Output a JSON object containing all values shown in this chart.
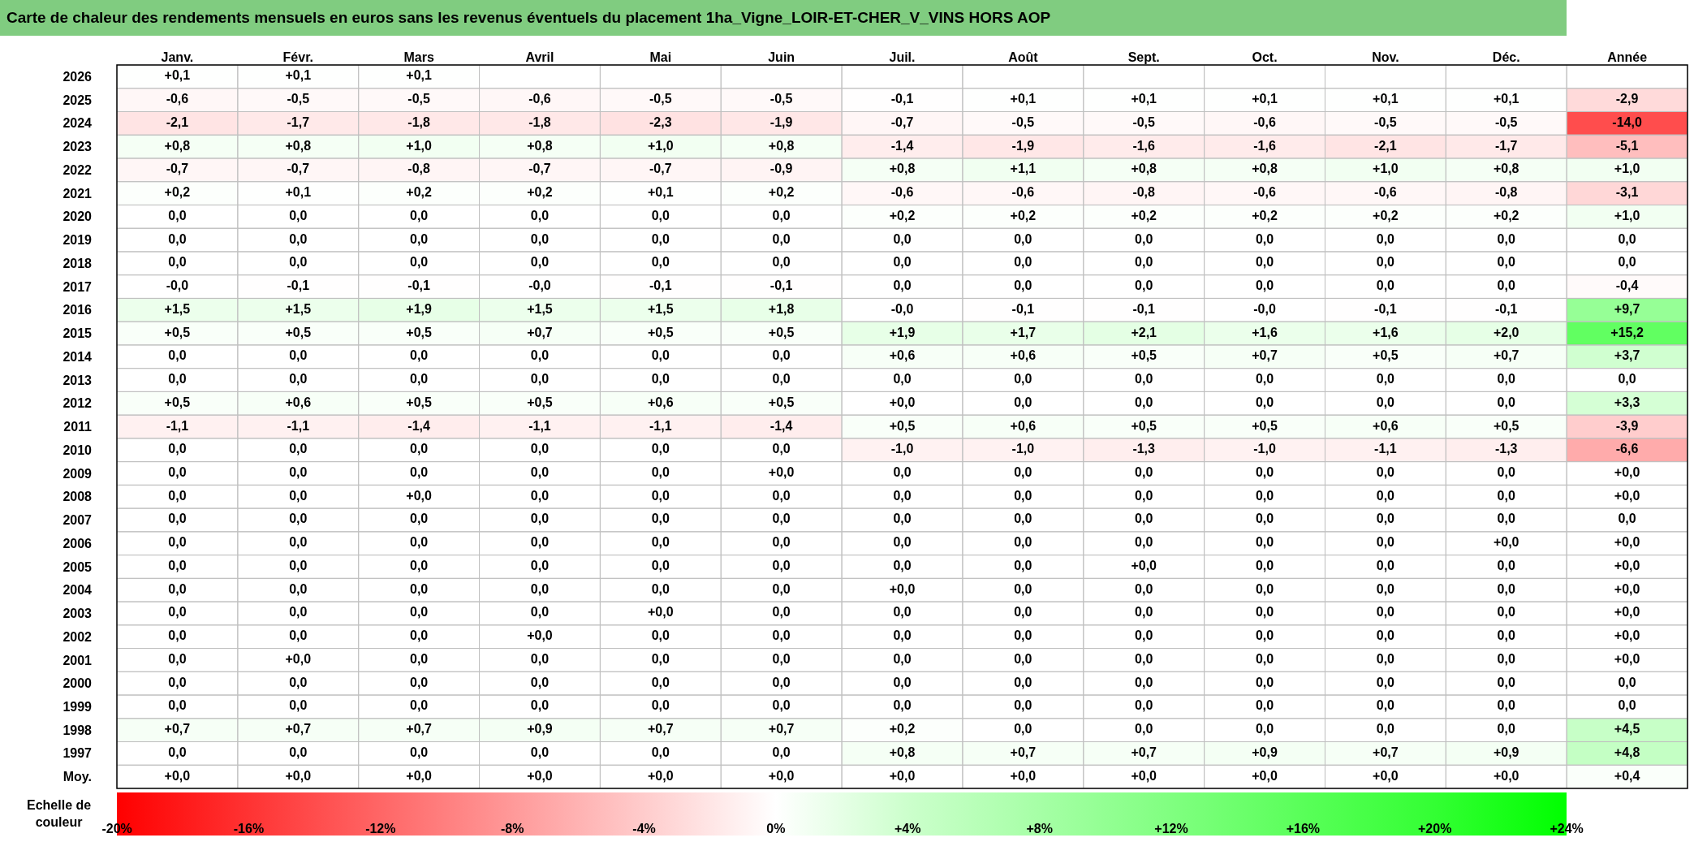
{
  "chart_data": {
    "type": "heatmap",
    "title": "Carte de chaleur des rendements mensuels en euros sans les revenus éventuels du placement 1ha_Vigne_LOIR-ET-CHER_V_VINS HORS AOP",
    "clabel": "Echelle de couleur",
    "categories": [
      "Janv.",
      "Févr.",
      "Mars",
      "Avril",
      "Mai",
      "Juin",
      "Juil.",
      "Août",
      "Sept.",
      "Oct.",
      "Nov.",
      "Déc.",
      "Année"
    ],
    "y_categories": [
      "2026",
      "2025",
      "2024",
      "2023",
      "2022",
      "2021",
      "2020",
      "2019",
      "2018",
      "2017",
      "2016",
      "2015",
      "2014",
      "2013",
      "2012",
      "2011",
      "2010",
      "2009",
      "2008",
      "2007",
      "2006",
      "2005",
      "2004",
      "2003",
      "2002",
      "2001",
      "2000",
      "1999",
      "1998",
      "1997",
      "Moy."
    ],
    "cells": [
      [
        0.1,
        0.1,
        0.1,
        null,
        null,
        null,
        null,
        null,
        null,
        null,
        null,
        null,
        null
      ],
      [
        -0.6,
        -0.5,
        -0.5,
        -0.6,
        -0.5,
        -0.5,
        -0.1,
        0.1,
        0.1,
        0.1,
        0.1,
        0.1,
        -2.9
      ],
      [
        -2.1,
        -1.7,
        -1.8,
        -1.8,
        -2.3,
        -1.9,
        -0.7,
        -0.5,
        -0.5,
        -0.6,
        -0.5,
        -0.5,
        -14.0
      ],
      [
        0.8,
        0.8,
        1.0,
        0.8,
        1.0,
        0.8,
        -1.4,
        -1.9,
        -1.6,
        -1.6,
        -2.1,
        -1.7,
        -5.1
      ],
      [
        -0.7,
        -0.7,
        -0.8,
        -0.7,
        -0.7,
        -0.9,
        0.8,
        1.1,
        0.8,
        0.8,
        1.0,
        0.8,
        1.0
      ],
      [
        0.2,
        0.1,
        0.2,
        0.2,
        0.1,
        0.2,
        -0.6,
        -0.6,
        -0.8,
        -0.6,
        -0.6,
        -0.8,
        -3.1
      ],
      [
        0,
        0,
        0,
        0,
        0,
        0,
        0.2,
        0.2,
        0.2,
        0.2,
        0.2,
        0.2,
        1.0
      ],
      [
        0,
        0,
        0,
        0,
        0,
        0,
        0,
        0,
        0,
        0,
        0,
        0,
        0
      ],
      [
        0,
        0,
        0,
        0,
        0,
        0,
        0,
        0,
        0,
        0,
        0,
        0,
        0
      ],
      [
        0,
        -0.1,
        -0.1,
        0,
        -0.1,
        -0.1,
        0,
        0,
        0,
        0,
        0,
        0,
        -0.4
      ],
      [
        1.5,
        1.5,
        1.9,
        1.5,
        1.5,
        1.8,
        0,
        -0.1,
        -0.1,
        0,
        -0.1,
        -0.1,
        9.7
      ],
      [
        0.5,
        0.5,
        0.5,
        0.7,
        0.5,
        0.5,
        1.9,
        1.7,
        2.1,
        1.6,
        1.6,
        2.0,
        15.2
      ],
      [
        0,
        0,
        0,
        0,
        0,
        0,
        0.6,
        0.6,
        0.5,
        0.7,
        0.5,
        0.7,
        3.7
      ],
      [
        0,
        0,
        0,
        0,
        0,
        0,
        0,
        0,
        0,
        0,
        0,
        0,
        0
      ],
      [
        0.5,
        0.6,
        0.5,
        0.5,
        0.6,
        0.5,
        0,
        0,
        0,
        0,
        0,
        0,
        3.3
      ],
      [
        -1.1,
        -1.1,
        -1.4,
        -1.1,
        -1.1,
        -1.4,
        0.5,
        0.6,
        0.5,
        0.5,
        0.6,
        0.5,
        -3.9
      ],
      [
        0,
        0,
        0,
        0,
        0,
        0,
        -1.0,
        -1.0,
        -1.3,
        -1.0,
        -1.1,
        -1.3,
        -6.6
      ],
      [
        0,
        0,
        0,
        0,
        0,
        0,
        0,
        0,
        0,
        0,
        0,
        0,
        0
      ],
      [
        0,
        0,
        0,
        0,
        0,
        0,
        0,
        0,
        0,
        0,
        0,
        0,
        0
      ],
      [
        0,
        0,
        0,
        0,
        0,
        0,
        0,
        0,
        0,
        0,
        0,
        0,
        0
      ],
      [
        0,
        0,
        0,
        0,
        0,
        0,
        0,
        0,
        0,
        0,
        0,
        0,
        0
      ],
      [
        0,
        0,
        0,
        0,
        0,
        0,
        0,
        0,
        0,
        0,
        0,
        0,
        0
      ],
      [
        0,
        0,
        0,
        0,
        0,
        0,
        0,
        0,
        0,
        0,
        0,
        0,
        0
      ],
      [
        0,
        0,
        0,
        0,
        0,
        0,
        0,
        0,
        0,
        0,
        0,
        0,
        0
      ],
      [
        0,
        0,
        0,
        0,
        0,
        0,
        0,
        0,
        0,
        0,
        0,
        0,
        0
      ],
      [
        0,
        0,
        0,
        0,
        0,
        0,
        0,
        0,
        0,
        0,
        0,
        0,
        0
      ],
      [
        0,
        0,
        0,
        0,
        0,
        0,
        0,
        0,
        0,
        0,
        0,
        0,
        0
      ],
      [
        0,
        0,
        0,
        0,
        0,
        0,
        0,
        0,
        0,
        0,
        0,
        0,
        0
      ],
      [
        0.7,
        0.7,
        0.7,
        0.9,
        0.7,
        0.7,
        0.2,
        0,
        0,
        0,
        0,
        0,
        4.5
      ],
      [
        0,
        0,
        0,
        0,
        0,
        0,
        0.8,
        0.7,
        0.7,
        0.9,
        0.7,
        0.9,
        4.8
      ],
      [
        0,
        0,
        0,
        0,
        0,
        0,
        0,
        0,
        0,
        0,
        0,
        0,
        0.4
      ]
    ],
    "cell_labels": [
      [
        "+0,1",
        "+0,1",
        "+0,1",
        null,
        null,
        null,
        null,
        null,
        null,
        null,
        null,
        null,
        null
      ],
      [
        "-0,6",
        "-0,5",
        "-0,5",
        "-0,6",
        "-0,5",
        "-0,5",
        "-0,1",
        "+0,1",
        "+0,1",
        "+0,1",
        "+0,1",
        "+0,1",
        "-2,9"
      ],
      [
        "-2,1",
        "-1,7",
        "-1,8",
        "-1,8",
        "-2,3",
        "-1,9",
        "-0,7",
        "-0,5",
        "-0,5",
        "-0,6",
        "-0,5",
        "-0,5",
        "-14,0"
      ],
      [
        "+0,8",
        "+0,8",
        "+1,0",
        "+0,8",
        "+1,0",
        "+0,8",
        "-1,4",
        "-1,9",
        "-1,6",
        "-1,6",
        "-2,1",
        "-1,7",
        "-5,1"
      ],
      [
        "-0,7",
        "-0,7",
        "-0,8",
        "-0,7",
        "-0,7",
        "-0,9",
        "+0,8",
        "+1,1",
        "+0,8",
        "+0,8",
        "+1,0",
        "+0,8",
        "+1,0"
      ],
      [
        "+0,2",
        "+0,1",
        "+0,2",
        "+0,2",
        "+0,1",
        "+0,2",
        "-0,6",
        "-0,6",
        "-0,8",
        "-0,6",
        "-0,6",
        "-0,8",
        "-3,1"
      ],
      [
        "0,0",
        "0,0",
        "0,0",
        "0,0",
        "0,0",
        "0,0",
        "+0,2",
        "+0,2",
        "+0,2",
        "+0,2",
        "+0,2",
        "+0,2",
        "+1,0"
      ],
      [
        "0,0",
        "0,0",
        "0,0",
        "0,0",
        "0,0",
        "0,0",
        "0,0",
        "0,0",
        "0,0",
        "0,0",
        "0,0",
        "0,0",
        "0,0"
      ],
      [
        "0,0",
        "0,0",
        "0,0",
        "0,0",
        "0,0",
        "0,0",
        "0,0",
        "0,0",
        "0,0",
        "0,0",
        "0,0",
        "0,0",
        "0,0"
      ],
      [
        "-0,0",
        "-0,1",
        "-0,1",
        "-0,0",
        "-0,1",
        "-0,1",
        "0,0",
        "0,0",
        "0,0",
        "0,0",
        "0,0",
        "0,0",
        "-0,4"
      ],
      [
        "+1,5",
        "+1,5",
        "+1,9",
        "+1,5",
        "+1,5",
        "+1,8",
        "-0,0",
        "-0,1",
        "-0,1",
        "-0,0",
        "-0,1",
        "-0,1",
        "+9,7"
      ],
      [
        "+0,5",
        "+0,5",
        "+0,5",
        "+0,7",
        "+0,5",
        "+0,5",
        "+1,9",
        "+1,7",
        "+2,1",
        "+1,6",
        "+1,6",
        "+2,0",
        "+15,2"
      ],
      [
        "0,0",
        "0,0",
        "0,0",
        "0,0",
        "0,0",
        "0,0",
        "+0,6",
        "+0,6",
        "+0,5",
        "+0,7",
        "+0,5",
        "+0,7",
        "+3,7"
      ],
      [
        "0,0",
        "0,0",
        "0,0",
        "0,0",
        "0,0",
        "0,0",
        "0,0",
        "0,0",
        "0,0",
        "0,0",
        "0,0",
        "0,0",
        "0,0"
      ],
      [
        "+0,5",
        "+0,6",
        "+0,5",
        "+0,5",
        "+0,6",
        "+0,5",
        "+0,0",
        "0,0",
        "0,0",
        "0,0",
        "0,0",
        "0,0",
        "+3,3"
      ],
      [
        "-1,1",
        "-1,1",
        "-1,4",
        "-1,1",
        "-1,1",
        "-1,4",
        "+0,5",
        "+0,6",
        "+0,5",
        "+0,5",
        "+0,6",
        "+0,5",
        "-3,9"
      ],
      [
        "0,0",
        "0,0",
        "0,0",
        "0,0",
        "0,0",
        "0,0",
        "-1,0",
        "-1,0",
        "-1,3",
        "-1,0",
        "-1,1",
        "-1,3",
        "-6,6"
      ],
      [
        "0,0",
        "0,0",
        "0,0",
        "0,0",
        "0,0",
        "+0,0",
        "0,0",
        "0,0",
        "0,0",
        "0,0",
        "0,0",
        "0,0",
        "+0,0"
      ],
      [
        "0,0",
        "0,0",
        "+0,0",
        "0,0",
        "0,0",
        "0,0",
        "0,0",
        "0,0",
        "0,0",
        "0,0",
        "0,0",
        "0,0",
        "+0,0"
      ],
      [
        "0,0",
        "0,0",
        "0,0",
        "0,0",
        "0,0",
        "0,0",
        "0,0",
        "0,0",
        "0,0",
        "0,0",
        "0,0",
        "0,0",
        "0,0"
      ],
      [
        "0,0",
        "0,0",
        "0,0",
        "0,0",
        "0,0",
        "0,0",
        "0,0",
        "0,0",
        "0,0",
        "0,0",
        "0,0",
        "+0,0",
        "+0,0"
      ],
      [
        "0,0",
        "0,0",
        "0,0",
        "0,0",
        "0,0",
        "0,0",
        "0,0",
        "0,0",
        "+0,0",
        "0,0",
        "0,0",
        "0,0",
        "+0,0"
      ],
      [
        "0,0",
        "0,0",
        "0,0",
        "0,0",
        "0,0",
        "0,0",
        "+0,0",
        "0,0",
        "0,0",
        "0,0",
        "0,0",
        "0,0",
        "+0,0"
      ],
      [
        "0,0",
        "0,0",
        "0,0",
        "0,0",
        "+0,0",
        "0,0",
        "0,0",
        "0,0",
        "0,0",
        "0,0",
        "0,0",
        "0,0",
        "+0,0"
      ],
      [
        "0,0",
        "0,0",
        "0,0",
        "+0,0",
        "0,0",
        "0,0",
        "0,0",
        "0,0",
        "0,0",
        "0,0",
        "0,0",
        "0,0",
        "+0,0"
      ],
      [
        "0,0",
        "+0,0",
        "0,0",
        "0,0",
        "0,0",
        "0,0",
        "0,0",
        "0,0",
        "0,0",
        "0,0",
        "0,0",
        "0,0",
        "+0,0"
      ],
      [
        "0,0",
        "0,0",
        "0,0",
        "0,0",
        "0,0",
        "0,0",
        "0,0",
        "0,0",
        "0,0",
        "0,0",
        "0,0",
        "0,0",
        "0,0"
      ],
      [
        "0,0",
        "0,0",
        "0,0",
        "0,0",
        "0,0",
        "0,0",
        "0,0",
        "0,0",
        "0,0",
        "0,0",
        "0,0",
        "0,0",
        "0,0"
      ],
      [
        "+0,7",
        "+0,7",
        "+0,7",
        "+0,9",
        "+0,7",
        "+0,7",
        "+0,2",
        "0,0",
        "0,0",
        "0,0",
        "0,0",
        "0,0",
        "+4,5"
      ],
      [
        "0,0",
        "0,0",
        "0,0",
        "0,0",
        "0,0",
        "0,0",
        "+0,8",
        "+0,7",
        "+0,7",
        "+0,9",
        "+0,7",
        "+0,9",
        "+4,8"
      ],
      [
        "+0,0",
        "+0,0",
        "+0,0",
        "+0,0",
        "+0,0",
        "+0,0",
        "+0,0",
        "+0,0",
        "+0,0",
        "+0,0",
        "+0,0",
        "+0,0",
        "+0,4"
      ]
    ],
    "clim": [
      -20,
      24
    ],
    "cticks": [
      {
        "value": -20,
        "label": "-20%"
      },
      {
        "value": -16,
        "label": "-16%"
      },
      {
        "value": -12,
        "label": "-12%"
      },
      {
        "value": -8,
        "label": "-8%"
      },
      {
        "value": -4,
        "label": "-4%"
      },
      {
        "value": 0,
        "label": "0%"
      },
      {
        "value": 4,
        "label": "+4%"
      },
      {
        "value": 8,
        "label": "+8%"
      },
      {
        "value": 12,
        "label": "+12%"
      },
      {
        "value": 16,
        "label": "+16%"
      },
      {
        "value": 20,
        "label": "+20%"
      },
      {
        "value": 24,
        "label": "+24%"
      }
    ],
    "colors": [
      "#ff0000",
      "#ff3333",
      "#ff6666",
      "#ff9999",
      "#ffcccc",
      "#ffffff",
      "#ccffcc",
      "#a6ffa6",
      "#80ff80",
      "#59ff59",
      "#33ff33",
      "#00ff00"
    ]
  }
}
